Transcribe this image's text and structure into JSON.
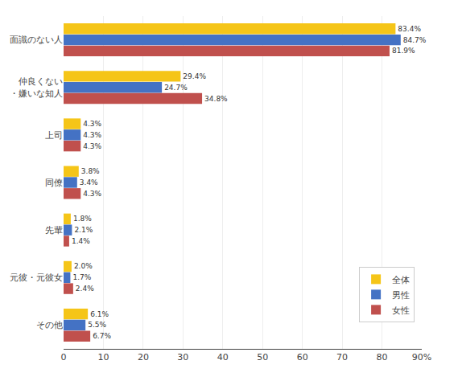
{
  "chart_data": {
    "type": "bar",
    "orientation": "horizontal",
    "categories": [
      "面識のない人",
      "仲良くない\n・嫌いな知人",
      "上司",
      "同僚",
      "先輩",
      "元彼・元彼女",
      "その他"
    ],
    "series": [
      {
        "name": "全体",
        "color": "#F5C518",
        "values": [
          83.4,
          29.4,
          4.3,
          3.8,
          1.8,
          2.0,
          6.1
        ],
        "value_labels": [
          "83.4%",
          "29.4%",
          "4.3%",
          "3.8%",
          "1.8%",
          "2.0%",
          "6.1%"
        ]
      },
      {
        "name": "男性",
        "color": "#4472C4",
        "values": [
          84.7,
          24.7,
          4.3,
          3.4,
          2.1,
          1.7,
          5.5
        ],
        "value_labels": [
          "84.7%",
          "24.7%",
          "4.3%",
          "3.4%",
          "2.1%",
          "1.7%",
          "5.5%"
        ]
      },
      {
        "name": "女性",
        "color": "#C0504D",
        "values": [
          81.9,
          34.8,
          4.3,
          4.3,
          1.4,
          2.4,
          6.7
        ],
        "value_labels": [
          "81.9%",
          "34.8%",
          "4.3%",
          "4.3%",
          "1.4%",
          "2.4%",
          "6.7%"
        ]
      }
    ],
    "xlim": [
      0,
      90
    ],
    "xticks": [
      0,
      10,
      20,
      30,
      40,
      50,
      60,
      70,
      80,
      {
        "value": 90,
        "label": "90%"
      }
    ],
    "grid": true,
    "legend": "lower right",
    "data_labels": true
  }
}
